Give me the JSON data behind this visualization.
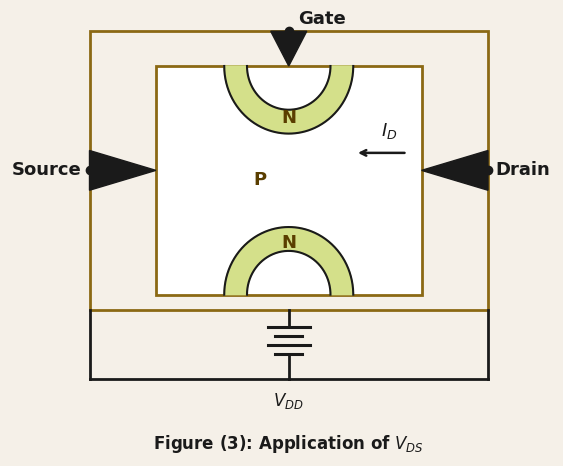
{
  "bg_color": "#f5f0e8",
  "line_color": "#1a1a1a",
  "border_color": "#8B6914",
  "n_region_fill": "#d4e08a",
  "gate_label": "Gate",
  "source_label": "Source",
  "drain_label": "Drain",
  "label_color": "#1a1a1a",
  "title_fontsize": 12,
  "label_fontsize": 13,
  "outer_lw": 2.0,
  "inner_lw": 2.0,
  "wire_lw": 2.0
}
